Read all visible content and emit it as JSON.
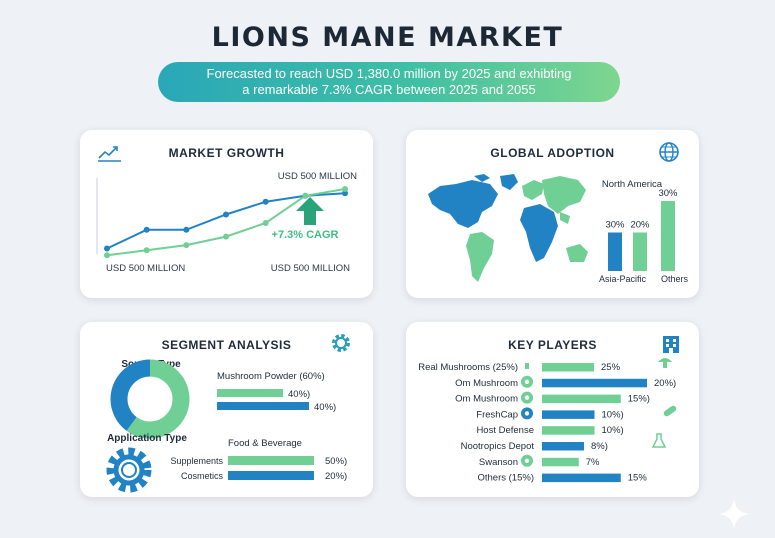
{
  "title": "LIONS MANE MARKET",
  "subtitle_line1": "Forecasted to reach USD 1,380.0 million by 2025 and exhibting",
  "subtitle_line2": "a remarkable 7.3% CAGR between 2025 and 2055",
  "colors": {
    "blue": "#2283c4",
    "green": "#6fcf94",
    "dark": "#1f2b3a"
  },
  "cards": {
    "growth": {
      "title": "MARKET GROWTH",
      "icon": "trend-line-icon"
    },
    "adoption": {
      "title": "GLOBAL ADOPTION",
      "icon": "globe-icon"
    },
    "segment": {
      "title": "SEGMENT ANALYSIS",
      "icon": "gear-icon"
    },
    "players": {
      "title": "KEY PLAYERS",
      "icon": "building-icon"
    }
  },
  "chart_data": [
    {
      "type": "line",
      "title": "MARKET GROWTH",
      "top_label": "USD 500 MILLION",
      "x_start_label": "USD 500 MILLION",
      "x_end_label": "USD 500 MILLION",
      "annotation": "+7.3% CAGR",
      "x": [
        1,
        2,
        3,
        4,
        5,
        6,
        7
      ],
      "series": [
        {
          "color": "#2283c4",
          "values": [
            10,
            32,
            32,
            50,
            65,
            72,
            75
          ]
        },
        {
          "color": "#6fcf94",
          "values": [
            2,
            8,
            14,
            24,
            40,
            72,
            80
          ]
        }
      ],
      "ylim": [
        0,
        100
      ]
    },
    {
      "type": "bar",
      "title": "GLOBAL ADOPTION",
      "region_labels": [
        "North America",
        "Asia-Pacific",
        "Others"
      ],
      "values": [
        30,
        20,
        30
      ],
      "value_labels": [
        "30%",
        "20%",
        "30%"
      ],
      "colors": [
        "#2283c4",
        "#6fcf94",
        "#6fcf94"
      ],
      "bar_heights_relative": [
        0.55,
        0.55,
        1.0
      ]
    },
    {
      "type": "bar",
      "title": "SEGMENT ANALYSIS",
      "source_type_label": "Source Type",
      "application_type_label": "Application Type",
      "donut": [
        {
          "color": "#6fcf94",
          "value": 60
        },
        {
          "color": "#2283c4",
          "value": 40
        }
      ],
      "source_bars": {
        "header": "Mushroom Powder (60%)",
        "rows": [
          {
            "color": "#6fcf94",
            "value": 40,
            "label": "40%)"
          },
          {
            "color": "#2283c4",
            "value": 40,
            "label": "40%)"
          }
        ]
      },
      "application_bars": {
        "header": "Food & Beverage",
        "rows": [
          {
            "name": "Supplements",
            "color": "#6fcf94",
            "value": 50,
            "label": "50%)"
          },
          {
            "name": "Cosmetics",
            "color": "#2283c4",
            "value": 20,
            "label": "20%)"
          }
        ]
      }
    },
    {
      "type": "bar",
      "title": "KEY PLAYERS",
      "rows": [
        {
          "name": "Real Mushrooms",
          "name_pct": "(25%)",
          "value": 25,
          "label": "25%",
          "color": "#6fcf94",
          "icon": "mushroom-icon"
        },
        {
          "name": "Om Mushroom",
          "name_pct": "",
          "value": 20,
          "label": "20%)",
          "color": "#2283c4",
          "icon": "leaf-icon"
        },
        {
          "name": "Om Mushroom",
          "name_pct": "",
          "value": 15,
          "label": "15%)",
          "color": "#6fcf94",
          "icon": "leaf-icon"
        },
        {
          "name": "FreshCap",
          "name_pct": "",
          "value": 10,
          "label": "10%)",
          "color": "#2283c4",
          "icon": "location-pin-icon"
        },
        {
          "name": "Host Defense",
          "name_pct": "",
          "value": 10,
          "label": "10%)",
          "color": "#6fcf94",
          "icon": ""
        },
        {
          "name": "Nootropics Depot",
          "name_pct": "",
          "value": 8,
          "label": "8%)",
          "color": "#2283c4",
          "icon": ""
        },
        {
          "name": "Swanson",
          "name_pct": "",
          "value": 7,
          "label": "7%",
          "color": "#6fcf94",
          "icon": "person-icon"
        },
        {
          "name": "Others",
          "name_pct": "(15%)",
          "value": 15,
          "label": "15%",
          "color": "#2283c4",
          "icon": ""
        }
      ],
      "side_icons": [
        "mushroom-icon",
        "capsule-icon",
        "flask-icon"
      ]
    }
  ]
}
